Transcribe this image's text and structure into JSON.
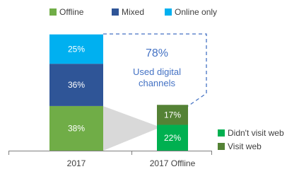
{
  "chart_data": {
    "type": "stacked_bar",
    "categories": [
      "2017",
      "2017 Offline"
    ],
    "series": [
      {
        "name": "Offline",
        "color": "#70ad47",
        "legend": "top",
        "values": [
          38,
          null
        ],
        "value_labels": [
          "38%",
          null
        ]
      },
      {
        "name": "Mixed",
        "color": "#2f5597",
        "legend": "top",
        "values": [
          36,
          null
        ],
        "value_labels": [
          "36%",
          null
        ]
      },
      {
        "name": "Online only",
        "color": "#00b0f0",
        "legend": "top",
        "values": [
          25,
          null
        ],
        "value_labels": [
          "25%",
          null
        ]
      },
      {
        "name": "Didn't visit web",
        "color": "#00b050",
        "legend": "right",
        "values": [
          null,
          22
        ],
        "value_labels": [
          null,
          "22%"
        ]
      },
      {
        "name": "Visit web",
        "color": "#548235",
        "legend": "right",
        "values": [
          null,
          17
        ],
        "value_labels": [
          null,
          "17%"
        ]
      }
    ],
    "ylim": [
      0,
      100
    ],
    "annotations": [
      "78%",
      "Used digital channels"
    ]
  }
}
